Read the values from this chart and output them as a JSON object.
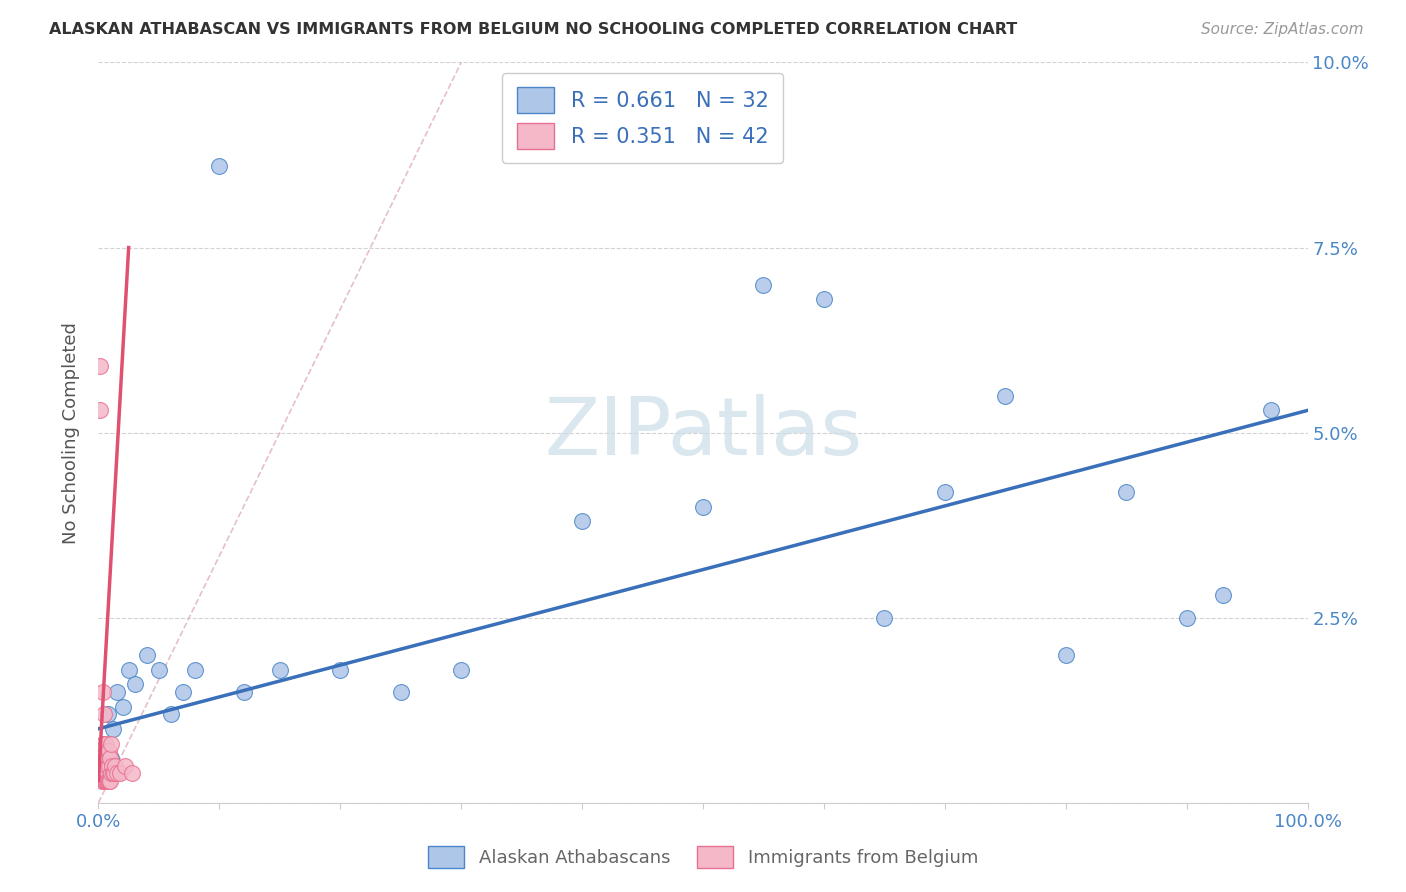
{
  "title": "ALASKAN ATHABASCAN VS IMMIGRANTS FROM BELGIUM NO SCHOOLING COMPLETED CORRELATION CHART",
  "source": "Source: ZipAtlas.com",
  "ylabel": "No Schooling Completed",
  "xlim": [
    0,
    100
  ],
  "ylim": [
    0,
    10
  ],
  "blue_R": 0.661,
  "blue_N": 32,
  "pink_R": 0.351,
  "pink_N": 42,
  "blue_label": "Alaskan Athabascans",
  "pink_label": "Immigrants from Belgium",
  "blue_color": "#aec6e8",
  "pink_color": "#f4b8c8",
  "blue_edge_color": "#4a86c8",
  "pink_edge_color": "#e87090",
  "blue_line_color": "#3a6fba",
  "pink_line_color": "#e05070",
  "legend_text_color": "#3a6fba",
  "tick_color": "#4a86c8",
  "watermark_color": "#ccdde8",
  "grid_color": "#c8c8c8",
  "blue_scatter_x": [
    0.3,
    0.5,
    0.8,
    1.0,
    1.2,
    1.5,
    2.0,
    2.5,
    3.0,
    4.0,
    5.0,
    6.0,
    7.0,
    8.0,
    10.0,
    12.0,
    15.0,
    20.0,
    25.0,
    30.0,
    40.0,
    50.0,
    55.0,
    60.0,
    65.0,
    70.0,
    75.0,
    80.0,
    85.0,
    90.0,
    93.0,
    97.0
  ],
  "blue_scatter_y": [
    0.5,
    0.8,
    1.2,
    0.6,
    1.0,
    1.5,
    1.3,
    1.8,
    1.6,
    2.0,
    1.8,
    1.2,
    1.5,
    1.8,
    8.6,
    1.5,
    1.8,
    1.8,
    1.5,
    1.8,
    3.8,
    4.0,
    7.0,
    6.8,
    2.5,
    4.2,
    5.5,
    2.0,
    4.2,
    2.5,
    2.8,
    5.3
  ],
  "pink_scatter_x": [
    0.1,
    0.15,
    0.2,
    0.25,
    0.3,
    0.35,
    0.4,
    0.4,
    0.45,
    0.45,
    0.5,
    0.5,
    0.5,
    0.55,
    0.55,
    0.6,
    0.6,
    0.6,
    0.65,
    0.65,
    0.7,
    0.7,
    0.75,
    0.75,
    0.8,
    0.8,
    0.85,
    0.85,
    0.9,
    0.9,
    0.95,
    0.95,
    1.0,
    1.0,
    1.1,
    1.2,
    1.3,
    1.4,
    1.5,
    1.8,
    2.2,
    2.8
  ],
  "pink_scatter_y": [
    5.9,
    5.3,
    0.6,
    0.4,
    0.3,
    0.5,
    0.8,
    1.5,
    0.3,
    0.5,
    0.4,
    0.8,
    1.2,
    0.3,
    0.6,
    0.3,
    0.5,
    0.8,
    0.3,
    0.6,
    0.4,
    0.7,
    0.3,
    0.5,
    0.3,
    0.6,
    0.3,
    0.7,
    0.3,
    0.5,
    0.3,
    0.6,
    0.4,
    0.8,
    0.5,
    0.4,
    0.4,
    0.5,
    0.4,
    0.4,
    0.5,
    0.4
  ],
  "blue_line_x0": 0,
  "blue_line_y0": 1.0,
  "blue_line_x1": 100,
  "blue_line_y1": 5.3,
  "pink_line_x0": 0.0,
  "pink_line_y0": 0.3,
  "pink_line_x1": 2.5,
  "pink_line_y1": 7.5,
  "diag_x0": 0,
  "diag_y0": 0,
  "diag_x1": 30,
  "diag_y1": 10
}
